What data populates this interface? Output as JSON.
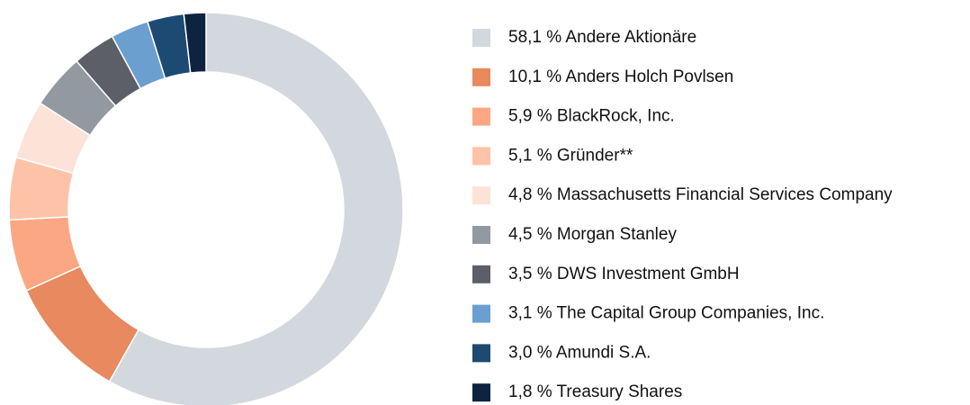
{
  "chart_data": {
    "type": "donut",
    "categories": [
      "Andere Aktionäre",
      "Anders Holch Povlsen",
      "BlackRock, Inc.",
      "Gründer**",
      "Massachusetts Financial Services Company",
      "Morgan Stanley",
      "DWS Investment GmbH",
      "The Capital Group Companies, Inc.",
      "Amundi S.A.",
      "Treasury Shares"
    ],
    "values": [
      58.1,
      10.1,
      5.9,
      5.1,
      4.8,
      4.5,
      3.5,
      3.1,
      3.0,
      1.8
    ],
    "value_labels": [
      "58,1 %",
      "10,1 %",
      "5,9 %",
      "5,1 %",
      "4,8 %",
      "4,5 %",
      "3,5 %",
      "3,1 %",
      "3,0 %",
      "1,8 %"
    ],
    "colors": [
      "#d3d8de",
      "#e8895f",
      "#fba784",
      "#fdc3a8",
      "#fde2d7",
      "#9399a0",
      "#5c5f68",
      "#6a9fd0",
      "#1c4a72",
      "#0d2340"
    ],
    "legend": "right"
  }
}
